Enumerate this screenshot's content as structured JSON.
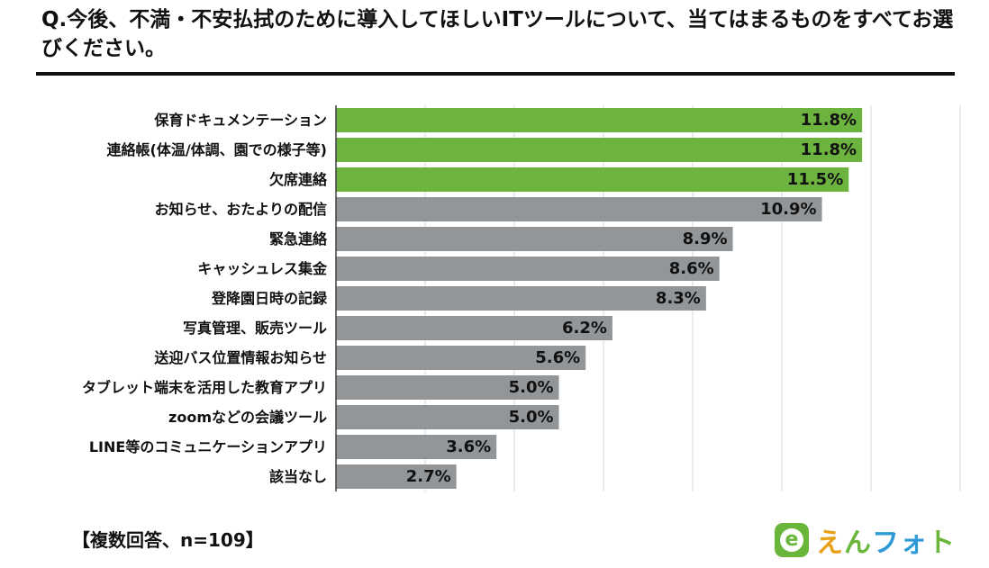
{
  "page": {
    "title": "Q.今後、不満・不安払拭のために導入してほしいITツールについて、当てはまるものをすべてお選びください。",
    "footnote": "【複数回答、n=109】",
    "logo": {
      "badge_letter": "e",
      "text_chars": [
        "え",
        "ん",
        "フ",
        "ォ",
        "ト"
      ]
    }
  },
  "chart_data": {
    "type": "bar",
    "orientation": "horizontal",
    "title": "Q.今後、不満・不安払拭のために導入してほしいITツールについて、当てはまるものをすべてお選びください。",
    "xlabel": "",
    "ylabel": "",
    "xlim": [
      0,
      14
    ],
    "grid": true,
    "value_suffix": "%",
    "categories": [
      "保育ドキュメンテーション",
      "連絡帳(体温/体調、園での様子等)",
      "欠席連絡",
      "お知らせ、おたよりの配信",
      "緊急連絡",
      "キャッシュレス集金",
      "登降園日時の記録",
      "写真管理、販売ツール",
      "送迎バス位置情報お知らせ",
      "タブレット端末を活用した教育アプリ",
      "zoomなどの会議ツール",
      "LINE等のコミュニケーションアプリ",
      "該当なし"
    ],
    "values": [
      11.8,
      11.8,
      11.5,
      10.9,
      8.9,
      8.6,
      8.3,
      6.2,
      5.6,
      5.0,
      5.0,
      3.6,
      2.7
    ],
    "labels": [
      "11.8%",
      "11.8%",
      "11.5%",
      "10.9%",
      "8.9%",
      "8.6%",
      "8.3%",
      "6.2%",
      "5.6%",
      "5.0%",
      "5.0%",
      "3.6%",
      "2.7%"
    ],
    "highlight_count": 3,
    "colors": {
      "highlight": "#6db33f",
      "default": "#939699",
      "grid": "#d9d9d9",
      "axis": "#404040",
      "text": "#111111"
    }
  }
}
